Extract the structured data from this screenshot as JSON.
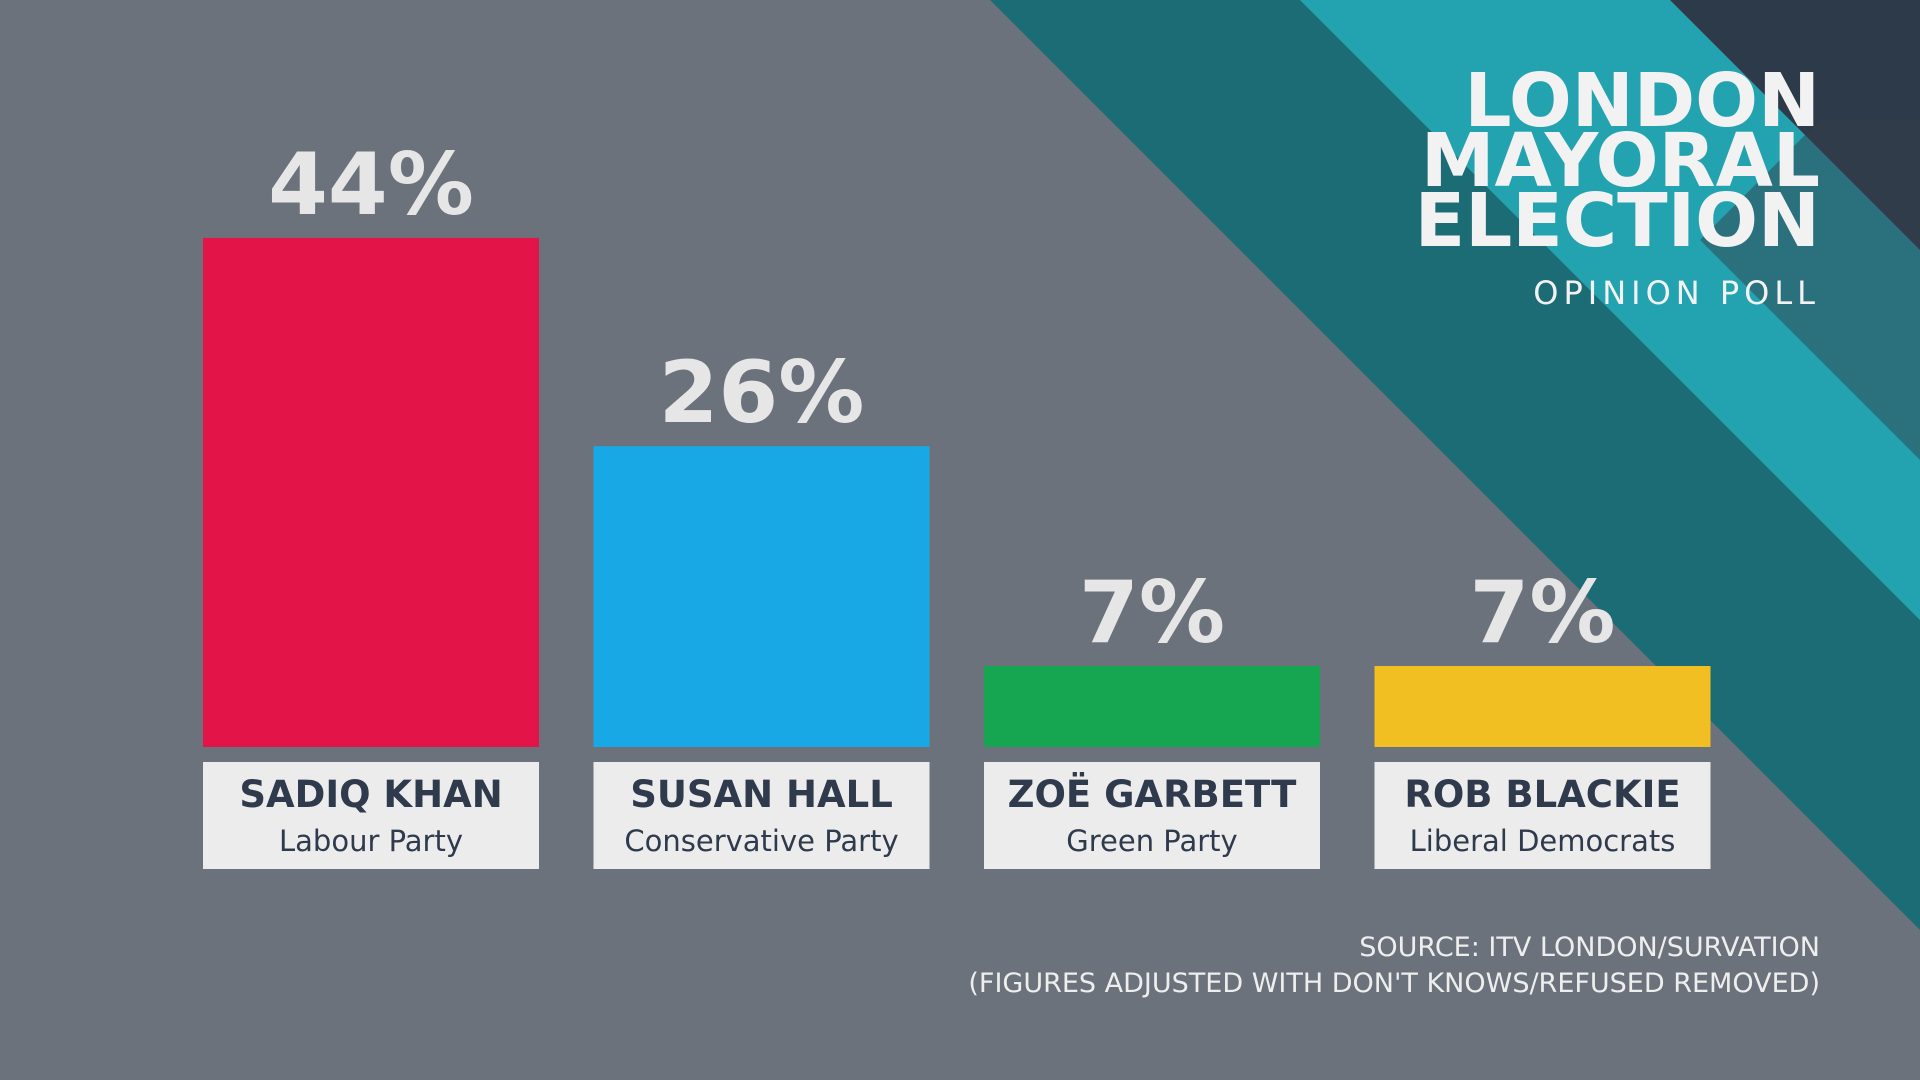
{
  "chart_data": {
    "type": "bar",
    "title": [
      "LONDON",
      "MAYORAL",
      "ELECTION"
    ],
    "subtitle": "OPINION POLL",
    "categories": [
      "SADIQ KHAN",
      "SUSAN HALL",
      "ZOË GARBETT",
      "ROB BLACKIE"
    ],
    "parties": [
      "Labour Party",
      "Conservative Party",
      "Green Party",
      "Liberal Democrats"
    ],
    "values": [
      44,
      26,
      7,
      7
    ],
    "value_labels": [
      "44%",
      "26%",
      "7%",
      "7%"
    ],
    "colors": [
      "#e31548",
      "#17a8e5",
      "#16a550",
      "#f1bf21"
    ],
    "notes": [
      "SOURCE: ITV LONDON/SURVATION",
      "(FIGURES ADJUSTED WITH DON'T KNOWS/REFUSED REMOVED)"
    ]
  }
}
